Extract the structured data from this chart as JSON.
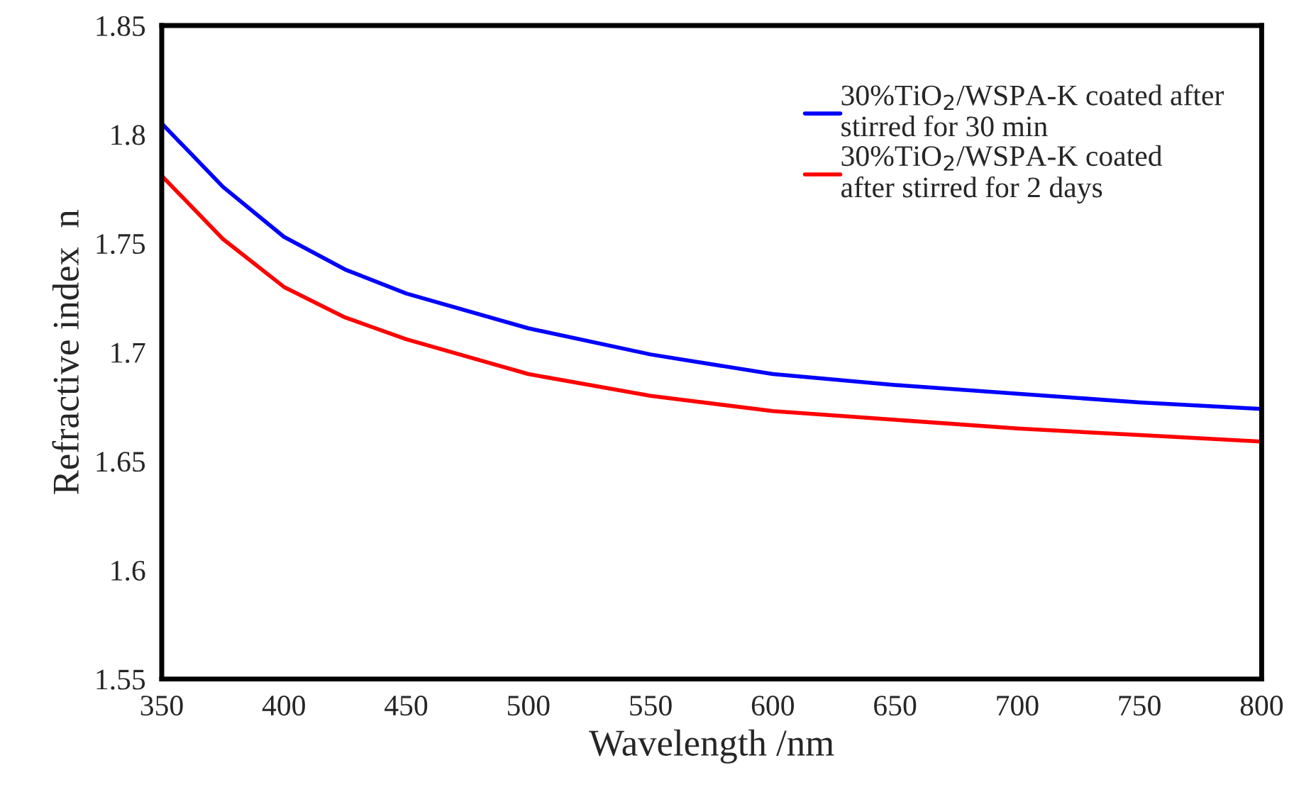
{
  "chart_data": {
    "type": "line",
    "xlabel": "Wavelength /nm",
    "ylabel": "Refractive index  n",
    "x": [
      350,
      375,
      400,
      425,
      450,
      500,
      550,
      600,
      650,
      700,
      750,
      800
    ],
    "series": [
      {
        "name": "30%TiO$_{2}$/WSPA-K coated after\nstirred for 30 min",
        "color": "#0000ff",
        "values": [
          1.805,
          1.776,
          1.753,
          1.738,
          1.727,
          1.711,
          1.699,
          1.69,
          1.685,
          1.681,
          1.677,
          1.674
        ]
      },
      {
        "name": "30%TiO$_{2}$/WSPA-K coated\nafter stirred for 2 days",
        "color": "#ff0000",
        "values": [
          1.781,
          1.752,
          1.73,
          1.716,
          1.706,
          1.69,
          1.68,
          1.673,
          1.669,
          1.665,
          1.662,
          1.659
        ]
      }
    ],
    "xlim": [
      350,
      800
    ],
    "xticks": [
      350,
      400,
      450,
      500,
      550,
      600,
      650,
      700,
      750,
      800
    ],
    "ylim": [
      1.55,
      1.85
    ],
    "yticks": [
      {
        "value": 1.55,
        "label": "1.55"
      },
      {
        "value": 1.6,
        "label": "1.6"
      },
      {
        "value": 1.65,
        "label": "1.65"
      },
      {
        "value": 1.7,
        "label": "1.7"
      },
      {
        "value": 1.75,
        "label": "1.75"
      },
      {
        "value": 1.8,
        "label": "1.8"
      },
      {
        "value": 1.85,
        "label": "1.85"
      }
    ],
    "grid": false,
    "legend": "top right",
    "marker": "none",
    "line_style": "solid"
  }
}
